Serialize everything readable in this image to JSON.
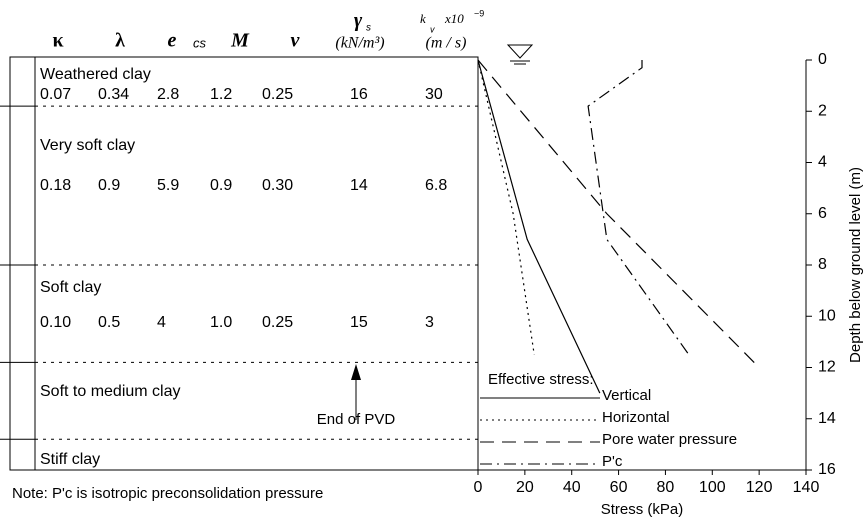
{
  "chart_data": {
    "type": "line",
    "xlabel": "Stress (kPa)",
    "ylabel": "Depth below ground level (m)",
    "xlim": [
      0,
      140
    ],
    "xticks": [
      0,
      20,
      40,
      60,
      80,
      100,
      120,
      140
    ],
    "ylim": [
      0,
      16
    ],
    "yticks": [
      0,
      2,
      4,
      6,
      8,
      10,
      12,
      14,
      16
    ],
    "y_inverted": true,
    "legend_title": "Effective stress:",
    "series": [
      {
        "name": "Vertical",
        "color": "#000",
        "dash": "",
        "x": [
          0,
          21,
          52
        ],
        "y": [
          0,
          7,
          13
        ]
      },
      {
        "name": "Horizontal",
        "color": "#000",
        "dash": "2 4",
        "x": [
          0,
          15,
          24
        ],
        "y": [
          0,
          6,
          11.5
        ]
      },
      {
        "name": "Pore water pressure",
        "color": "#000",
        "dash": "14 8",
        "x": [
          0,
          55,
          120
        ],
        "y": [
          0,
          6,
          12
        ]
      },
      {
        "name": "P'c",
        "color": "#000",
        "dash": "12 5 2 5",
        "x": [
          70,
          70,
          47,
          55,
          90
        ],
        "y": [
          0,
          0.3,
          1.8,
          7,
          11.5
        ]
      }
    ]
  },
  "soil_profile": {
    "headers": [
      "κ",
      "λ",
      "e",
      "cs",
      "M",
      "ν",
      "γ",
      "s",
      "(kN/m³)",
      "k",
      "v",
      "x10",
      "−9",
      "(m / s)"
    ],
    "layers": [
      {
        "name": "Weathered clay",
        "params": [
          "0.07",
          "0.34",
          "2.8",
          "1.2",
          "0.25",
          "16",
          "30"
        ]
      },
      {
        "name": "Very soft clay",
        "params": [
          "0.18",
          "0.9",
          "5.9",
          "0.9",
          "0.30",
          "14",
          "6.8"
        ]
      },
      {
        "name": "Soft clay",
        "params": [
          "0.10",
          "0.5",
          "4",
          "1.0",
          "0.25",
          "15",
          "3"
        ]
      },
      {
        "name": "Soft to medium clay",
        "params": []
      },
      {
        "name": "Stiff clay",
        "params": []
      }
    ],
    "boundaries": [
      1.8,
      8,
      11.8,
      14.8
    ],
    "annotation": "End of PVD",
    "note": "Note: P'c is isotropic preconsolidation pressure"
  }
}
